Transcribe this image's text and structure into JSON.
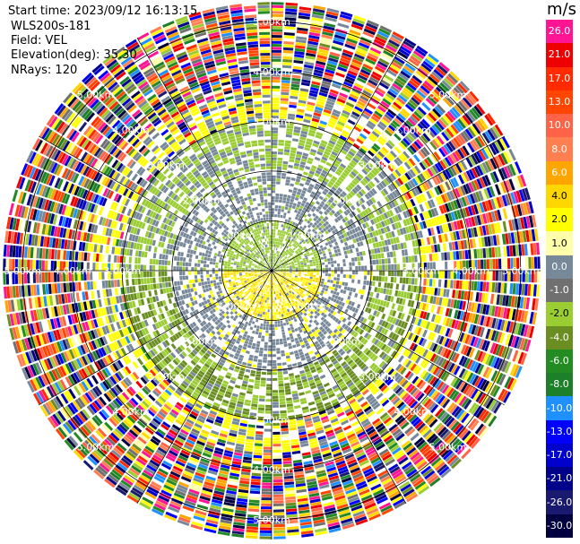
{
  "header": {
    "start_time": "Start time: 2023/09/12 16:13:15",
    "instrument": "WLS200s-181",
    "field": "Field: VEL",
    "elevation": "Elevation(deg): 35.30",
    "nrays": "NRays: 120"
  },
  "colorbar": {
    "unit": "m/s",
    "levels": [
      {
        "label": "26.0",
        "color": "#ff1493"
      },
      {
        "label": "21.0",
        "color": "#ee0000"
      },
      {
        "label": "17.0",
        "color": "#ff2a00"
      },
      {
        "label": "13.0",
        "color": "#ff4500"
      },
      {
        "label": "10.0",
        "color": "#ff6347"
      },
      {
        "label": "8.0",
        "color": "#ff7f50"
      },
      {
        "label": "6.0",
        "color": "#ffa500"
      },
      {
        "label": "4.0",
        "color": "#ffd700"
      },
      {
        "label": "2.0",
        "color": "#ffff00"
      },
      {
        "label": "1.0",
        "color": "#ffffaa"
      },
      {
        "label": "0.0",
        "color": "#778899"
      },
      {
        "label": "-1.0",
        "color": "#707070"
      },
      {
        "label": "-2.0",
        "color": "#9acd32"
      },
      {
        "label": "-4.0",
        "color": "#6b8e23"
      },
      {
        "label": "-6.0",
        "color": "#228b22"
      },
      {
        "label": "-8.0",
        "color": "#1e7f2a"
      },
      {
        "label": "-10.0",
        "color": "#1e90ff"
      },
      {
        "label": "-13.0",
        "color": "#0000ff"
      },
      {
        "label": "-17.0",
        "color": "#0000cd"
      },
      {
        "label": "-21.0",
        "color": "#00008b"
      },
      {
        "label": "-26.0",
        "color": "#191970"
      },
      {
        "label": "-30.0",
        "color": "#000040"
      }
    ]
  },
  "chart_data": {
    "type": "heatmap",
    "projection": "polar PPI",
    "field": "VEL",
    "units": "m/s",
    "nrays": 120,
    "elevation_deg": 35.3,
    "range_rings_km": [
      1.0,
      2.0,
      3.0,
      4.0,
      5.0
    ],
    "range_ring_labels": [
      {
        "ring": 1,
        "labels": [
          "1.00km",
          "1.00km",
          "1.00km",
          "1.00km"
        ]
      },
      {
        "ring": 2,
        "labels": [
          "2.00km",
          "2.00km",
          "2.00km",
          "2.00km"
        ]
      },
      {
        "ring": 3,
        "labels": [
          "3.00km",
          "3.00km",
          "3.00km",
          "3.00km",
          "3.00km",
          "3.00km",
          "3.00km",
          "3.00km"
        ]
      },
      {
        "ring": 4,
        "labels": [
          "4.00km",
          "4.00km",
          "4.00km",
          "4.00km",
          "4.00km",
          "4.00km",
          "4.00km",
          "4.00km"
        ]
      },
      {
        "ring": 5,
        "labels": [
          "5.00km",
          "5.00km",
          "5.00km",
          "5.00km",
          "5.00km",
          "5.00km",
          "5.00km",
          "5.00km"
        ]
      }
    ],
    "spoke_angles_deg": [
      0,
      30,
      60,
      90,
      120,
      150,
      180,
      210,
      240,
      270,
      300,
      330
    ],
    "color_scale": {
      "min": -30.0,
      "max": 26.0
    },
    "pattern_summary": [
      {
        "range_km": [
          0.0,
          1.0
        ],
        "north_half_velocity": -2.0,
        "south_half_velocity": 3.0
      },
      {
        "range_km": [
          1.0,
          2.0
        ],
        "dominant_velocity": 0.0
      },
      {
        "range_km": [
          2.0,
          3.0
        ],
        "north_velocity": -2.0,
        "south_velocity": -4.0
      },
      {
        "range_km": [
          3.0,
          3.6
        ],
        "ring_velocity": 3.0
      },
      {
        "range_km": [
          3.6,
          5.4
        ],
        "noise": true
      }
    ]
  }
}
